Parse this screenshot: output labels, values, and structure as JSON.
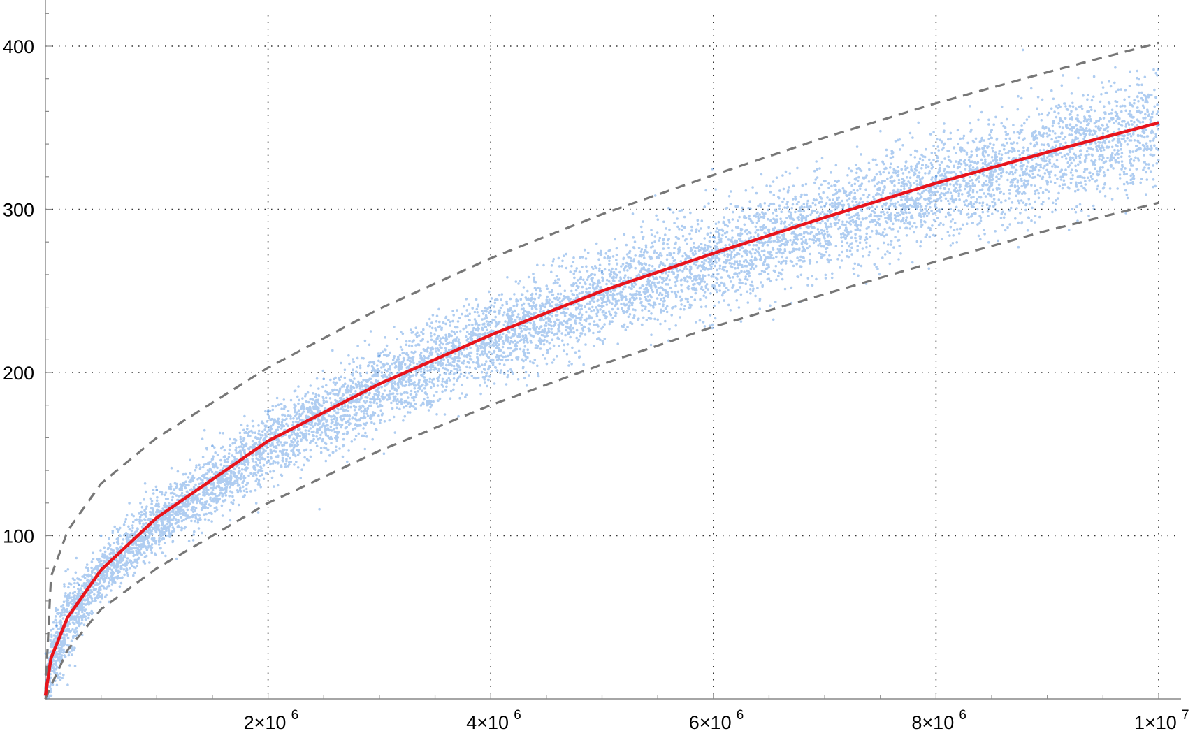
{
  "chart_data": {
    "type": "scatter",
    "title": "",
    "xlabel": "",
    "ylabel": "",
    "xlim": [
      0,
      10000000
    ],
    "ylim": [
      0,
      420
    ],
    "grid": true,
    "x_ticks": [
      {
        "value": 2000000,
        "label": "2×10",
        "exp": "6"
      },
      {
        "value": 4000000,
        "label": "4×10",
        "exp": "6"
      },
      {
        "value": 6000000,
        "label": "6×10",
        "exp": "6"
      },
      {
        "value": 8000000,
        "label": "8×10",
        "exp": "6"
      },
      {
        "value": 10000000,
        "label": "1×10",
        "exp": "7"
      }
    ],
    "y_ticks": [
      {
        "value": 100,
        "label": "100"
      },
      {
        "value": 200,
        "label": "200"
      },
      {
        "value": 300,
        "label": "300"
      },
      {
        "value": 400,
        "label": "400"
      }
    ],
    "series": [
      {
        "kind": "scatter",
        "color": "#1a6fd6",
        "description_points": "dense cloud of points around the fitted curve",
        "points_sample": [
          [
            5000,
            5
          ],
          [
            100000,
            45
          ],
          [
            300000,
            70
          ],
          [
            500000,
            100
          ],
          [
            1000000,
            128
          ],
          [
            1500000,
            155
          ],
          [
            2000000,
            176
          ],
          [
            2500000,
            196
          ],
          [
            3000000,
            210
          ],
          [
            4000000,
            238
          ],
          [
            5000000,
            262
          ],
          [
            6000000,
            283
          ],
          [
            7000000,
            302
          ],
          [
            8000000,
            320
          ],
          [
            9000000,
            336
          ],
          [
            10000000,
            352
          ]
        ]
      },
      {
        "kind": "line",
        "color": "#e8141c",
        "x": [
          0,
          50000,
          200000,
          500000,
          1000000,
          2000000,
          3000000,
          4000000,
          5000000,
          6000000,
          7000000,
          8000000,
          9000000,
          10000000
        ],
        "y": [
          2,
          25,
          50,
          79,
          111,
          158,
          193,
          223,
          250,
          273,
          295,
          316,
          335,
          353
        ]
      },
      {
        "kind": "dashed-upper",
        "color": "#777777",
        "x": [
          0,
          50000,
          200000,
          500000,
          1000000,
          2000000,
          3000000,
          4000000,
          5000000,
          6000000,
          7000000,
          8000000,
          9000000,
          10000000
        ],
        "y": [
          4,
          75,
          103,
          132,
          160,
          203,
          239,
          270,
          297,
          321,
          344,
          365,
          384,
          402
        ]
      },
      {
        "kind": "dashed-lower",
        "color": "#777777",
        "x": [
          0,
          50000,
          200000,
          500000,
          1000000,
          2000000,
          3000000,
          4000000,
          5000000,
          6000000,
          7000000,
          8000000,
          9000000,
          10000000
        ],
        "y": [
          0,
          8,
          30,
          55,
          80,
          120,
          152,
          180,
          205,
          228,
          248,
          268,
          287,
          304
        ]
      }
    ]
  }
}
